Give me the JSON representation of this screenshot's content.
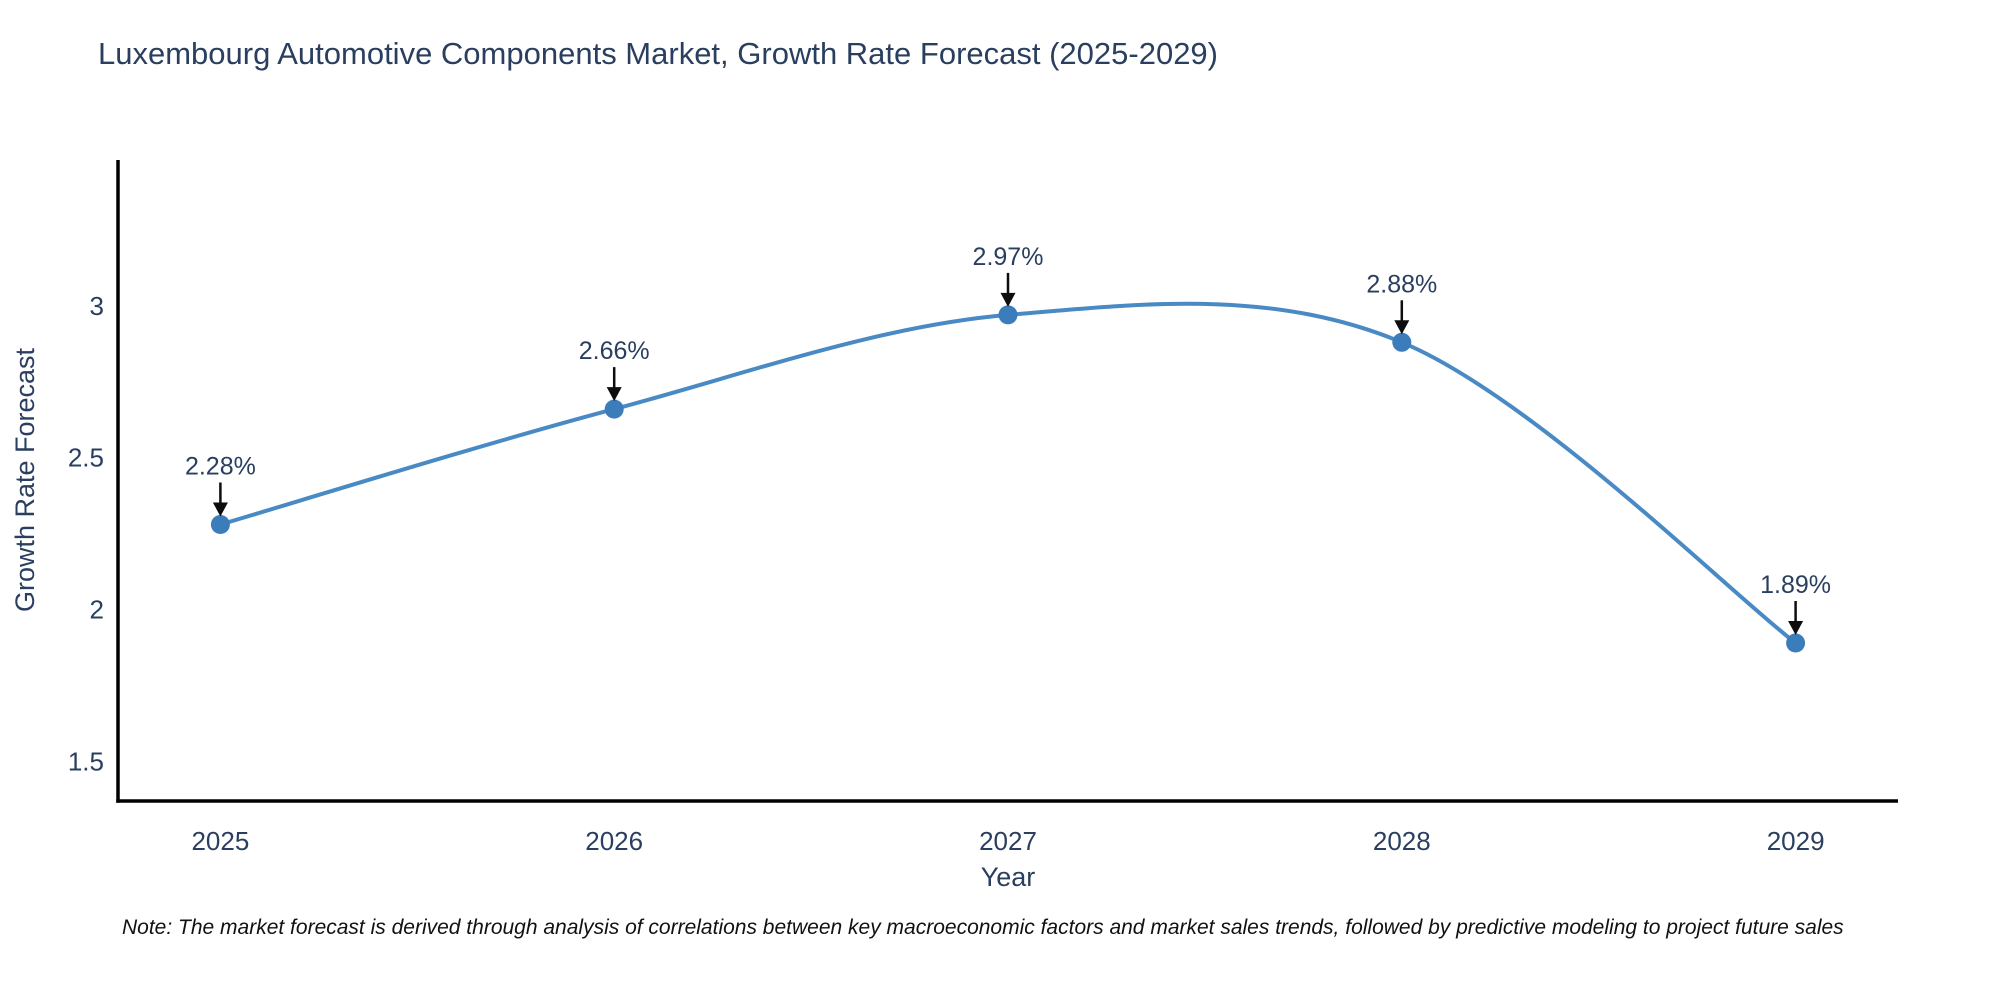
{
  "title": "Luxembourg Automotive Components Market, Growth Rate Forecast (2025-2029)",
  "note": "Note: The market forecast is derived through analysis of correlations between key macroeconomic factors and market sales trends, followed by predictive modeling to project future sales",
  "chart_data": {
    "type": "line",
    "title": "Luxembourg Automotive Components Market, Growth Rate Forecast (2025-2029)",
    "xlabel": "Year",
    "ylabel": "Growth Rate Forecast",
    "categories": [
      2025,
      2026,
      2027,
      2028,
      2029
    ],
    "values": [
      2.28,
      2.66,
      2.97,
      2.88,
      1.89
    ],
    "point_labels": [
      "2.28%",
      "2.66%",
      "2.97%",
      "2.88%",
      "1.89%"
    ],
    "x_tick_labels": [
      "2025",
      "2026",
      "2027",
      "2028",
      "2029"
    ],
    "y_tick_values": [
      1.5,
      2,
      2.5,
      3
    ],
    "y_tick_labels": [
      "1.5",
      "2",
      "2.5",
      "3"
    ],
    "xlim": [
      2024.74,
      2029.26
    ],
    "ylim": [
      1.37,
      3.48
    ],
    "line_shape": "spline",
    "grid": false,
    "legend": false,
    "colors": {
      "line": "#4a8ac4",
      "marker": "#3b7cba",
      "text": "#2a3f5f",
      "axis": "#000000",
      "annotation_arrow": "#0d0d0d"
    }
  }
}
